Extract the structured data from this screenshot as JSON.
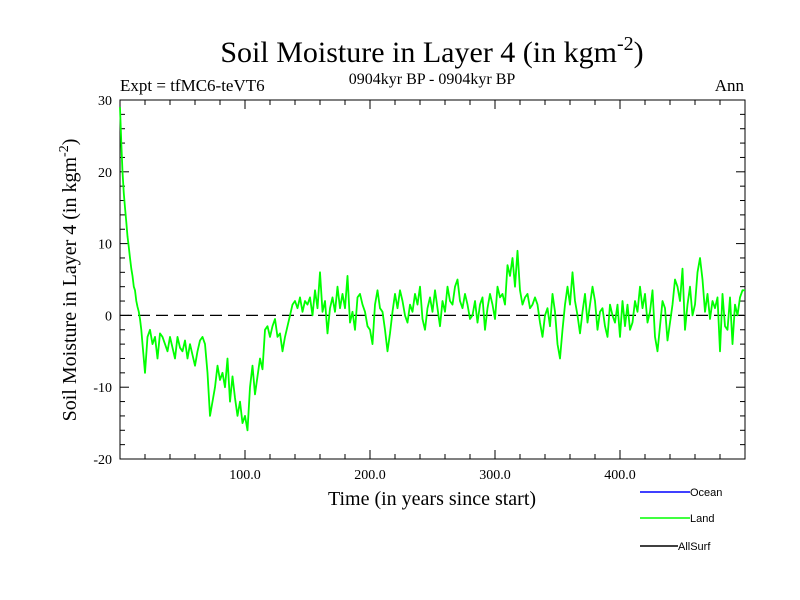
{
  "chart_data": {
    "type": "line",
    "title": "Soil Moisture in Layer 4 (in kgm",
    "title_superscript": "-2",
    "title_suffix": ")",
    "subtitle": "0904kyr BP - 0904kyr BP",
    "left_label": "Expt = tfMC6-teVT6",
    "right_label": "Ann",
    "xlabel": "Time (in years since start)",
    "ylabel": "Soil Moisture in Layer 4 (in kgm",
    "ylabel_superscript": "-2",
    "ylabel_suffix": ")",
    "xlim": [
      0,
      500
    ],
    "ylim": [
      -20,
      30
    ],
    "xticks": [
      100,
      200,
      300,
      400
    ],
    "xtick_labels": [
      "100.0",
      "200.0",
      "300.0",
      "400.0"
    ],
    "yticks": [
      -20,
      -10,
      0,
      10,
      20,
      30
    ],
    "ytick_labels": [
      "-20",
      "-10",
      "0",
      "10",
      "20",
      "30"
    ],
    "zero_line": "dashed",
    "legend_position": "bottom-right",
    "colors": {
      "Ocean": "#0000ff",
      "Land": "#00ff00",
      "AllSurf": "#000000"
    },
    "series": [
      {
        "name": "Ocean",
        "x": [],
        "y": []
      },
      {
        "name": "Land",
        "x": [
          0,
          1,
          2,
          3,
          4,
          5,
          6,
          7,
          8,
          9,
          10,
          11,
          12,
          13,
          14,
          15,
          16,
          17,
          18,
          20,
          22,
          24,
          26,
          28,
          30,
          32,
          34,
          36,
          38,
          40,
          42,
          44,
          46,
          48,
          50,
          52,
          54,
          56,
          58,
          60,
          62,
          64,
          66,
          68,
          70,
          72,
          74,
          76,
          78,
          80,
          82,
          84,
          86,
          88,
          90,
          92,
          94,
          96,
          98,
          100,
          102,
          104,
          106,
          108,
          110,
          112,
          114,
          116,
          118,
          120,
          122,
          124,
          126,
          128,
          130,
          132,
          134,
          136,
          138,
          140,
          142,
          144,
          146,
          148,
          150,
          152,
          154,
          156,
          158,
          160,
          162,
          164,
          166,
          168,
          170,
          172,
          174,
          176,
          178,
          180,
          182,
          184,
          186,
          188,
          190,
          192,
          194,
          196,
          198,
          200,
          202,
          204,
          206,
          208,
          210,
          212,
          214,
          216,
          218,
          220,
          222,
          224,
          226,
          228,
          230,
          232,
          234,
          236,
          238,
          240,
          242,
          244,
          246,
          248,
          250,
          252,
          254,
          256,
          258,
          260,
          262,
          264,
          266,
          268,
          270,
          272,
          274,
          276,
          278,
          280,
          282,
          284,
          286,
          288,
          290,
          292,
          294,
          296,
          298,
          300,
          302,
          304,
          306,
          308,
          310,
          312,
          314,
          316,
          318,
          320,
          322,
          324,
          326,
          328,
          330,
          332,
          334,
          336,
          338,
          340,
          342,
          344,
          346,
          348,
          350,
          352,
          354,
          356,
          358,
          360,
          362,
          364,
          366,
          368,
          370,
          372,
          374,
          376,
          378,
          380,
          382,
          384,
          386,
          388,
          390,
          392,
          394,
          396,
          398,
          400,
          402,
          404,
          406,
          408,
          410,
          412,
          414,
          416,
          418,
          420,
          422,
          424,
          426,
          428,
          430,
          432,
          434,
          436,
          438,
          440,
          442,
          444,
          446,
          448,
          450,
          452,
          454,
          456,
          458,
          460,
          462,
          464,
          466,
          468,
          470,
          472,
          474,
          476,
          478,
          480,
          482,
          484,
          486,
          488,
          490,
          492,
          494,
          496,
          498,
          500
        ],
        "y": [
          29,
          24,
          20,
          17,
          15,
          13,
          11,
          9.5,
          8,
          6.5,
          5.5,
          4,
          3.5,
          2,
          1.2,
          0.5,
          -0.5,
          -2,
          -4,
          -8,
          -3,
          -2,
          -4,
          -3,
          -6,
          -2.5,
          -3,
          -4,
          -5,
          -3,
          -4.5,
          -6,
          -3,
          -4.5,
          -5,
          -3.5,
          -6,
          -4,
          -5.5,
          -7,
          -5,
          -3.5,
          -3,
          -4,
          -8,
          -14,
          -12,
          -10,
          -7,
          -9,
          -8,
          -10,
          -6,
          -12,
          -8.5,
          -11.5,
          -14,
          -12,
          -15,
          -14,
          -16,
          -10,
          -7,
          -11,
          -8.5,
          -6,
          -7.5,
          -2,
          -1.5,
          -3,
          -1.5,
          -0.5,
          -3,
          -2.5,
          -5,
          -3,
          -1.5,
          0,
          1.5,
          2,
          1,
          2.5,
          0.5,
          2,
          1.5,
          2.5,
          0,
          3.5,
          1,
          6,
          0.5,
          2,
          -2.5,
          1,
          2.5,
          0.5,
          4,
          1,
          3,
          1,
          5.5,
          -1,
          0.5,
          -2,
          2.5,
          3,
          1.5,
          0.5,
          -1.5,
          -2,
          -4,
          1.5,
          3.5,
          1,
          0.5,
          -2,
          -5,
          -2.5,
          0.5,
          3,
          1,
          3.5,
          2,
          0,
          -1,
          1.5,
          0.5,
          3,
          1.5,
          4,
          -0.5,
          -2,
          1,
          2.5,
          0.5,
          3.5,
          1,
          -1.5,
          2,
          0.5,
          4,
          2,
          1.5,
          4,
          5,
          2,
          1,
          3,
          1.5,
          -0.5,
          0,
          2,
          -1,
          1.5,
          2.5,
          -2,
          1,
          3,
          1.5,
          -0.5,
          4,
          2.5,
          3,
          1.5,
          7,
          5.5,
          8,
          4,
          9,
          3.5,
          1.5,
          2.5,
          3,
          1,
          1.5,
          2.5,
          1.5,
          -1,
          -3,
          0,
          1,
          -1.5,
          3,
          0.5,
          -4,
          -6,
          -2,
          1.5,
          4,
          1.5,
          6,
          2,
          0,
          -2.5,
          0.5,
          3,
          -1,
          1.5,
          4,
          2,
          -2,
          0.5,
          1,
          -1.5,
          -3,
          1.5,
          0,
          -1,
          1.5,
          -3,
          2,
          -1.5,
          1.5,
          -2,
          -1,
          2,
          0.5,
          4,
          1,
          3,
          -1,
          0.5,
          3.5,
          -3,
          -5,
          -1.5,
          2,
          1,
          -3.5,
          -1,
          1.5,
          5,
          4,
          2,
          6.5,
          -2,
          1.5,
          4,
          0,
          1.5,
          6,
          8,
          5,
          0.5,
          3,
          -0.5,
          2,
          1,
          2.5,
          -5,
          3,
          -1.5,
          -2,
          2.5,
          -4,
          1.5,
          0,
          2.5,
          3.5,
          3.5
        ]
      },
      {
        "name": "AllSurf",
        "x": [],
        "y": []
      }
    ]
  }
}
